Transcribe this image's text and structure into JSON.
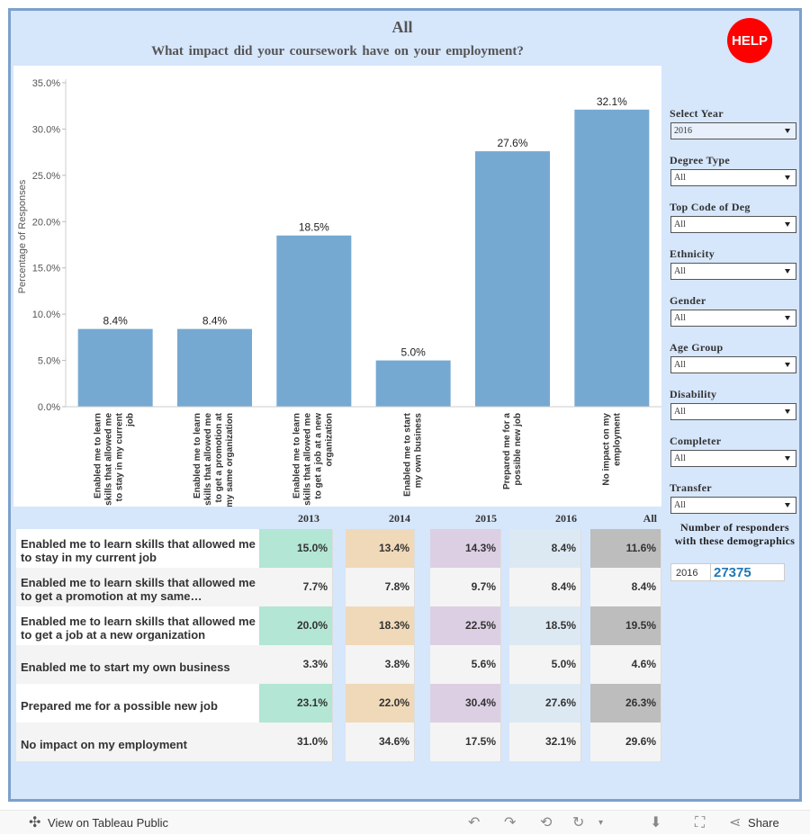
{
  "header": {
    "title": "All",
    "subtitle": "What impact did your coursework have on your employment?",
    "help_label": "HELP"
  },
  "chart_data": {
    "type": "bar",
    "ylabel": "Percentage of Responses",
    "xlabel": "",
    "ylim": [
      0,
      35
    ],
    "yticks": [
      "0.0%",
      "5.0%",
      "10.0%",
      "15.0%",
      "20.0%",
      "25.0%",
      "30.0%",
      "35.0%"
    ],
    "ytick_values": [
      0,
      5,
      10,
      15,
      20,
      25,
      30,
      35
    ],
    "categories": [
      "Enabled me to learn skills that allowed me to stay in my current job",
      "Enabled me to learn skills that allowed me to get a promotion at my same organization",
      "Enabled me to learn skills that allowed me to get a job at a new organization",
      "Enabled me to start my own business",
      "Prepared me for a possible new job",
      "No impact on my employment"
    ],
    "category_lines": [
      [
        "Enabled me to learn",
        "skills that allowed me",
        "to stay in my current",
        "job"
      ],
      [
        "Enabled me to learn",
        "skills that allowed me",
        "to get a promotion at",
        "my same organization"
      ],
      [
        "Enabled me to learn",
        "skills that allowed me",
        "to get a job at a new",
        "organization"
      ],
      [
        "Enabled me to start",
        "my own business"
      ],
      [
        "Prepared me for a",
        "possible new job"
      ],
      [
        "No impact on my",
        "employment"
      ]
    ],
    "values": [
      8.4,
      8.4,
      18.5,
      5.0,
      27.6,
      32.1
    ],
    "data_labels": [
      "8.4%",
      "8.4%",
      "18.5%",
      "5.0%",
      "27.6%",
      "32.1%"
    ],
    "bar_color": "#76a9d2",
    "grid": false
  },
  "filters": [
    {
      "label": "Select Year",
      "value": "2016"
    },
    {
      "label": "Degree Type",
      "value": "All"
    },
    {
      "label": "Top Code of Deg",
      "value": "All"
    },
    {
      "label": "Ethnicity",
      "value": "All"
    },
    {
      "label": "Gender",
      "value": "All"
    },
    {
      "label": "Age Group",
      "value": "All"
    },
    {
      "label": "Disability",
      "value": "All"
    },
    {
      "label": "Completer",
      "value": "All"
    },
    {
      "label": "Transfer",
      "value": "All"
    }
  ],
  "table": {
    "columns": [
      "2013",
      "2014",
      "2015",
      "2016",
      "All"
    ],
    "column_colors": [
      "#b3e6d4",
      "#f0d9b8",
      "#dccfe3",
      "#dce9f2",
      "#bdbdbd"
    ],
    "rows": [
      {
        "label": "Enabled me to learn skills that allowed me to stay in my current job",
        "values": [
          "15.0%",
          "13.4%",
          "14.3%",
          "8.4%",
          "11.6%"
        ],
        "highlight": true
      },
      {
        "label": "Enabled me to learn skills that allowed me to get a promotion at my same organization",
        "values": [
          "7.7%",
          "7.8%",
          "9.7%",
          "8.4%",
          "8.4%"
        ],
        "highlight": false
      },
      {
        "label": "Enabled me to learn skills that allowed me to get a job at a new organization",
        "values": [
          "20.0%",
          "18.3%",
          "22.5%",
          "18.5%",
          "19.5%"
        ],
        "highlight": true
      },
      {
        "label": "Enabled me to start my own business",
        "values": [
          "3.3%",
          "3.8%",
          "5.6%",
          "5.0%",
          "4.6%"
        ],
        "highlight": false
      },
      {
        "label": "Prepared me for a possible new job",
        "values": [
          "23.1%",
          "22.0%",
          "30.4%",
          "27.6%",
          "26.3%"
        ],
        "highlight": true
      },
      {
        "label": "No impact on my employment",
        "values": [
          "31.0%",
          "34.6%",
          "17.5%",
          "32.1%",
          "29.6%"
        ],
        "highlight": false
      }
    ]
  },
  "responders": {
    "title": "Number of responders with these demographics",
    "year": "2016",
    "count": "27375"
  },
  "toolbar": {
    "view_label": "View on Tableau Public",
    "share_label": "Share"
  }
}
